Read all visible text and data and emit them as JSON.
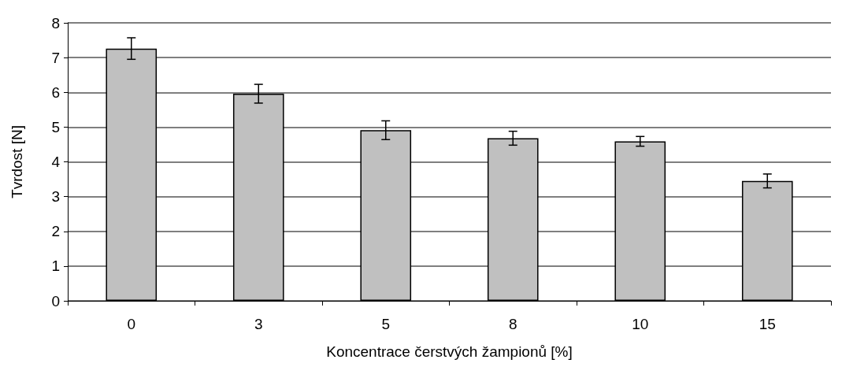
{
  "chart_data": {
    "type": "bar",
    "xlabel": "Koncentrace čerstvých žampionů [%]",
    "ylabel": "Tvrdost [N]",
    "categories": [
      "0",
      "3",
      "5",
      "8",
      "10",
      "15"
    ],
    "values": [
      7.26,
      5.96,
      4.91,
      4.68,
      4.59,
      3.45
    ],
    "errors": [
      0.31,
      0.27,
      0.27,
      0.2,
      0.14,
      0.2
    ],
    "color": "#c0c0c0",
    "ylim": [
      0,
      8
    ],
    "yticks": [
      0,
      1,
      2,
      3,
      4,
      5,
      6,
      7,
      8
    ],
    "grid": "y"
  }
}
